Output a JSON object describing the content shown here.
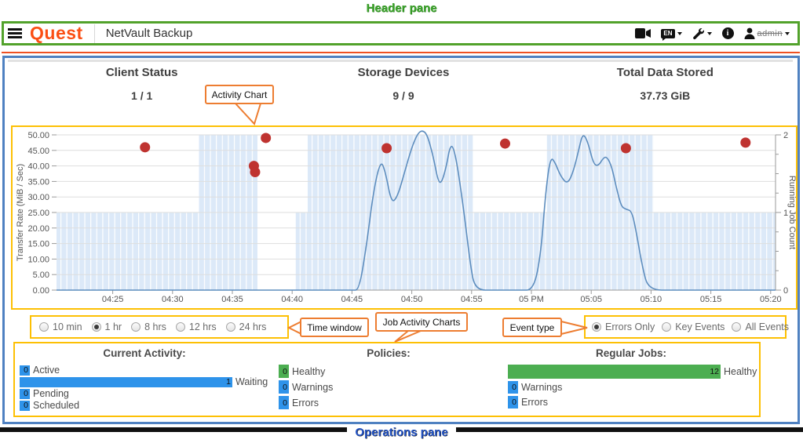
{
  "annotations": {
    "header_pane": "Header pane",
    "operations_pane": "Operations pane",
    "activity_chart": "Activity Chart",
    "time_window": "Time window",
    "job_activity_charts": "Job Activity Charts",
    "event_type": "Event type"
  },
  "header": {
    "brand": "Quest",
    "app_title": "NetVault Backup",
    "language": "EN",
    "user": "admin",
    "icons": [
      "hamburger-menu",
      "video-camera",
      "language-en",
      "tools",
      "info",
      "user"
    ]
  },
  "stats": [
    {
      "label": "Client Status",
      "value": "1 / 1"
    },
    {
      "label": "Storage Devices",
      "value": "9 / 9"
    },
    {
      "label": "Total Data Stored",
      "value": "37.73 GiB"
    }
  ],
  "time_window": {
    "options": [
      "10 min",
      "1 hr",
      "8 hrs",
      "12 hrs",
      "24 hrs"
    ],
    "selected": "1 hr"
  },
  "event_type": {
    "options": [
      "Errors Only",
      "Key Events",
      "All Events"
    ],
    "selected": "Errors Only"
  },
  "chart_data": {
    "type": "line",
    "title": "Activity Chart",
    "x_unit": "minutes after 04:25 PM",
    "x_axis": {
      "labels": [
        "04:25",
        "04:30",
        "04:35",
        "04:40",
        "04:45",
        "04:50",
        "04:55",
        "05 PM",
        "05:05",
        "05:10",
        "05:15",
        "05:20"
      ],
      "minutes_per_label": 5
    },
    "y_left": {
      "label": "Transfer Rate (MiB / Sec)",
      "min": 0,
      "max": 50,
      "tick_step": 5,
      "tick_format": "0.00"
    },
    "y_right": {
      "label": "Running Job Count",
      "min": 0,
      "max": 2,
      "tick_step": 1,
      "minor_step": 0.25
    },
    "colors": {
      "band": "#dce9f8",
      "grid": "#dedede",
      "axis": "#9a9a9a"
    },
    "series": {
      "transfer_rate": {
        "name": "Transfer Rate",
        "type": "line",
        "color": "#5d8dbe",
        "points": [
          [
            -4.7,
            0
          ],
          [
            5,
            0
          ],
          [
            12,
            0
          ],
          [
            18,
            0
          ],
          [
            20.0,
            0
          ],
          [
            20.6,
            0
          ],
          [
            21.2,
            14
          ],
          [
            21.8,
            32
          ],
          [
            22.4,
            42
          ],
          [
            22.8,
            38
          ],
          [
            23.3,
            28
          ],
          [
            23.8,
            30
          ],
          [
            24.4,
            38
          ],
          [
            25.0,
            46
          ],
          [
            25.5,
            50.5
          ],
          [
            25.9,
            51.5
          ],
          [
            26.3,
            50
          ],
          [
            26.8,
            43
          ],
          [
            27.2,
            35
          ],
          [
            27.5,
            34.5
          ],
          [
            27.9,
            40
          ],
          [
            28.2,
            46.5
          ],
          [
            28.5,
            46
          ],
          [
            28.9,
            38
          ],
          [
            29.4,
            24
          ],
          [
            29.9,
            8
          ],
          [
            30.3,
            0
          ],
          [
            32,
            0
          ],
          [
            34,
            0
          ],
          [
            35.2,
            0
          ],
          [
            35.8,
            12
          ],
          [
            36.2,
            32
          ],
          [
            36.6,
            43
          ],
          [
            37.0,
            41
          ],
          [
            37.4,
            37
          ],
          [
            38.0,
            34
          ],
          [
            38.5,
            38
          ],
          [
            39.0,
            46
          ],
          [
            39.3,
            50.5
          ],
          [
            39.7,
            48
          ],
          [
            40.2,
            40.5
          ],
          [
            40.6,
            40
          ],
          [
            41.0,
            42.5
          ],
          [
            41.3,
            43
          ],
          [
            41.7,
            40
          ],
          [
            42.1,
            33
          ],
          [
            42.5,
            27
          ],
          [
            42.9,
            26
          ],
          [
            43.4,
            25.5
          ],
          [
            43.8,
            18
          ],
          [
            44.3,
            7
          ],
          [
            44.8,
            0
          ],
          [
            47,
            0
          ],
          [
            50,
            0
          ],
          [
            53,
            0
          ],
          [
            55.4,
            0
          ]
        ]
      },
      "running_job_count": {
        "name": "Running Job Count",
        "type": "step-area",
        "color": "#dce9f8",
        "segments": [
          {
            "from_min": -4.7,
            "to_min": 7.2,
            "count": 1
          },
          {
            "from_min": 7.2,
            "to_min": 12.1,
            "count": 2
          },
          {
            "from_min": 12.1,
            "to_min": 15.3,
            "count": 0
          },
          {
            "from_min": 15.3,
            "to_min": 16.3,
            "count": 1
          },
          {
            "from_min": 16.3,
            "to_min": 30.1,
            "count": 2
          },
          {
            "from_min": 30.1,
            "to_min": 36.3,
            "count": 1
          },
          {
            "from_min": 36.3,
            "to_min": 45.2,
            "count": 2
          },
          {
            "from_min": 45.2,
            "to_min": 55.4,
            "count": 1
          }
        ]
      },
      "error_events": {
        "name": "Error Events",
        "type": "scatter",
        "color": "#bf3330",
        "points": [
          [
            2.7,
            46
          ],
          [
            11.8,
            40
          ],
          [
            11.9,
            38
          ],
          [
            12.8,
            49
          ],
          [
            22.9,
            45.7
          ],
          [
            32.8,
            47.2
          ],
          [
            42.9,
            45.7
          ],
          [
            52.9,
            47.5
          ]
        ]
      }
    }
  },
  "operations": {
    "columns": [
      {
        "title": "Current Activity:",
        "max": 1,
        "rows": [
          {
            "value": 0,
            "label": "Active",
            "color": "blue"
          },
          {
            "value": 1,
            "label": "Waiting",
            "color": "blue"
          },
          {
            "value": 0,
            "label": "Pending",
            "color": "blue"
          },
          {
            "value": 0,
            "label": "Scheduled",
            "color": "blue"
          }
        ]
      },
      {
        "title": "Policies:",
        "max": 1,
        "rows": [
          {
            "value": 0,
            "label": "Healthy",
            "color": "green"
          },
          {
            "value": 0,
            "label": "Warnings",
            "color": "blue"
          },
          {
            "value": 0,
            "label": "Errors",
            "color": "blue"
          }
        ]
      },
      {
        "title": "Regular Jobs:",
        "max": 12,
        "rows": [
          {
            "value": 12,
            "label": "Healthy",
            "color": "green"
          },
          {
            "value": 0,
            "label": "Warnings",
            "color": "blue"
          },
          {
            "value": 0,
            "label": "Errors",
            "color": "blue"
          }
        ]
      }
    ]
  },
  "colors": {
    "brand_orange": "#fb4f14",
    "header_green_border": "#52a22b",
    "header_orange_rule": "#ef5123",
    "pane_blue_border": "#4f81c1",
    "highlight_gold": "#fdc004",
    "callout_orange": "#ed7d31",
    "bar_blue": "#2e93ea",
    "bar_green": "#4cae51",
    "line_blue": "#5d8dbe",
    "band_blue": "#dce9f8",
    "dot_red": "#bf3330",
    "label_green": "#3da32c",
    "label_blue": "#2353c4"
  }
}
